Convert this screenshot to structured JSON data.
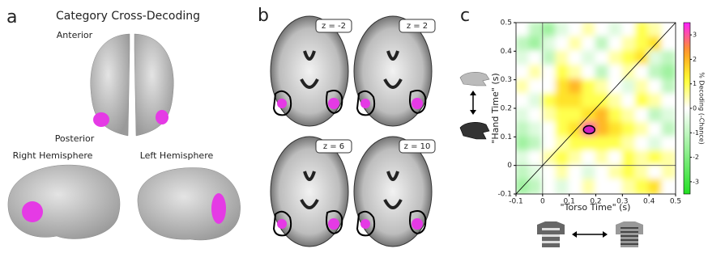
{
  "panel_a": {
    "label": "a",
    "title": "Category Cross-Decoding",
    "anterior": "Anterior",
    "posterior": "Posterior",
    "right": "Right Hemisphere",
    "left": "Left Hemisphere"
  },
  "panel_b": {
    "label": "b",
    "slices": [
      "z = -2",
      "z = 2",
      "z = 6",
      "z = 10"
    ]
  },
  "chart_data": {
    "type": "heatmap",
    "panel_label": "c",
    "x_label": "\"Torso Time\" (s)",
    "y_label": "\"Hand Time\" (s)",
    "colorbar_label": "% Decoding (-Chance)",
    "xlim": [
      -0.1,
      0.5
    ],
    "ylim": [
      -0.1,
      0.5
    ],
    "xticks": [
      -0.1,
      0,
      0.1,
      0.2,
      0.3,
      0.4,
      0.5
    ],
    "yticks": [
      -0.1,
      0,
      0.1,
      0.2,
      0.3,
      0.4,
      0.5
    ],
    "clim": [
      -3.5,
      3.5
    ],
    "cticks": [
      -3,
      -2,
      -1,
      0,
      1,
      2,
      3
    ],
    "colormap": [
      "#22e022",
      "#ffffff",
      "#ffff30",
      "#ff9a20",
      "#ff20ff"
    ],
    "x": [
      -0.075,
      -0.025,
      0.025,
      0.075,
      0.125,
      0.175,
      0.225,
      0.275,
      0.325,
      0.375,
      0.425,
      0.475
    ],
    "y": [
      0.475,
      0.425,
      0.375,
      0.325,
      0.275,
      0.225,
      0.175,
      0.125,
      0.075,
      0.025,
      -0.025,
      -0.075
    ],
    "z": [
      [
        0,
        -1,
        -1.5,
        -0.5,
        0,
        0.5,
        0,
        -0.5,
        0,
        1,
        0.5,
        0
      ],
      [
        -1,
        -1.5,
        -0.5,
        0,
        0.5,
        0,
        -1,
        0,
        0.5,
        1,
        1.5,
        0
      ],
      [
        -0.5,
        0,
        -1,
        0.5,
        0,
        -0.5,
        0,
        0.5,
        1,
        1.5,
        -0.5,
        -1
      ],
      [
        0,
        0.5,
        0,
        1,
        0.5,
        0,
        -1,
        0,
        0.5,
        0,
        -1,
        -1.5
      ],
      [
        0.5,
        0,
        0,
        1.5,
        2,
        1,
        0.5,
        0,
        -0.5,
        0.5,
        0,
        -1
      ],
      [
        0,
        -0.5,
        1,
        1.5,
        1.5,
        1,
        1,
        0.5,
        0,
        1,
        0.5,
        0
      ],
      [
        -0.5,
        0,
        0.5,
        1,
        1,
        1.5,
        2,
        1,
        0.5,
        0,
        -1,
        -0.5
      ],
      [
        -1,
        -0.5,
        0,
        1,
        1.5,
        3,
        2,
        1.5,
        1,
        0.5,
        0,
        -1
      ],
      [
        -1.5,
        -1,
        0,
        0.5,
        1,
        1,
        1,
        1,
        0.5,
        0,
        -0.5,
        0
      ],
      [
        -0.5,
        0,
        0.5,
        1,
        0.5,
        0,
        0.5,
        0,
        1,
        0.5,
        1,
        0.5
      ],
      [
        -1,
        -0.5,
        0,
        0.5,
        0,
        -0.5,
        0,
        0.5,
        1,
        0.5,
        0,
        0.5
      ],
      [
        -1.5,
        -1,
        0,
        -0.5,
        0,
        0.5,
        0,
        0,
        0.5,
        1,
        1.5,
        0
      ]
    ],
    "grid": false
  }
}
